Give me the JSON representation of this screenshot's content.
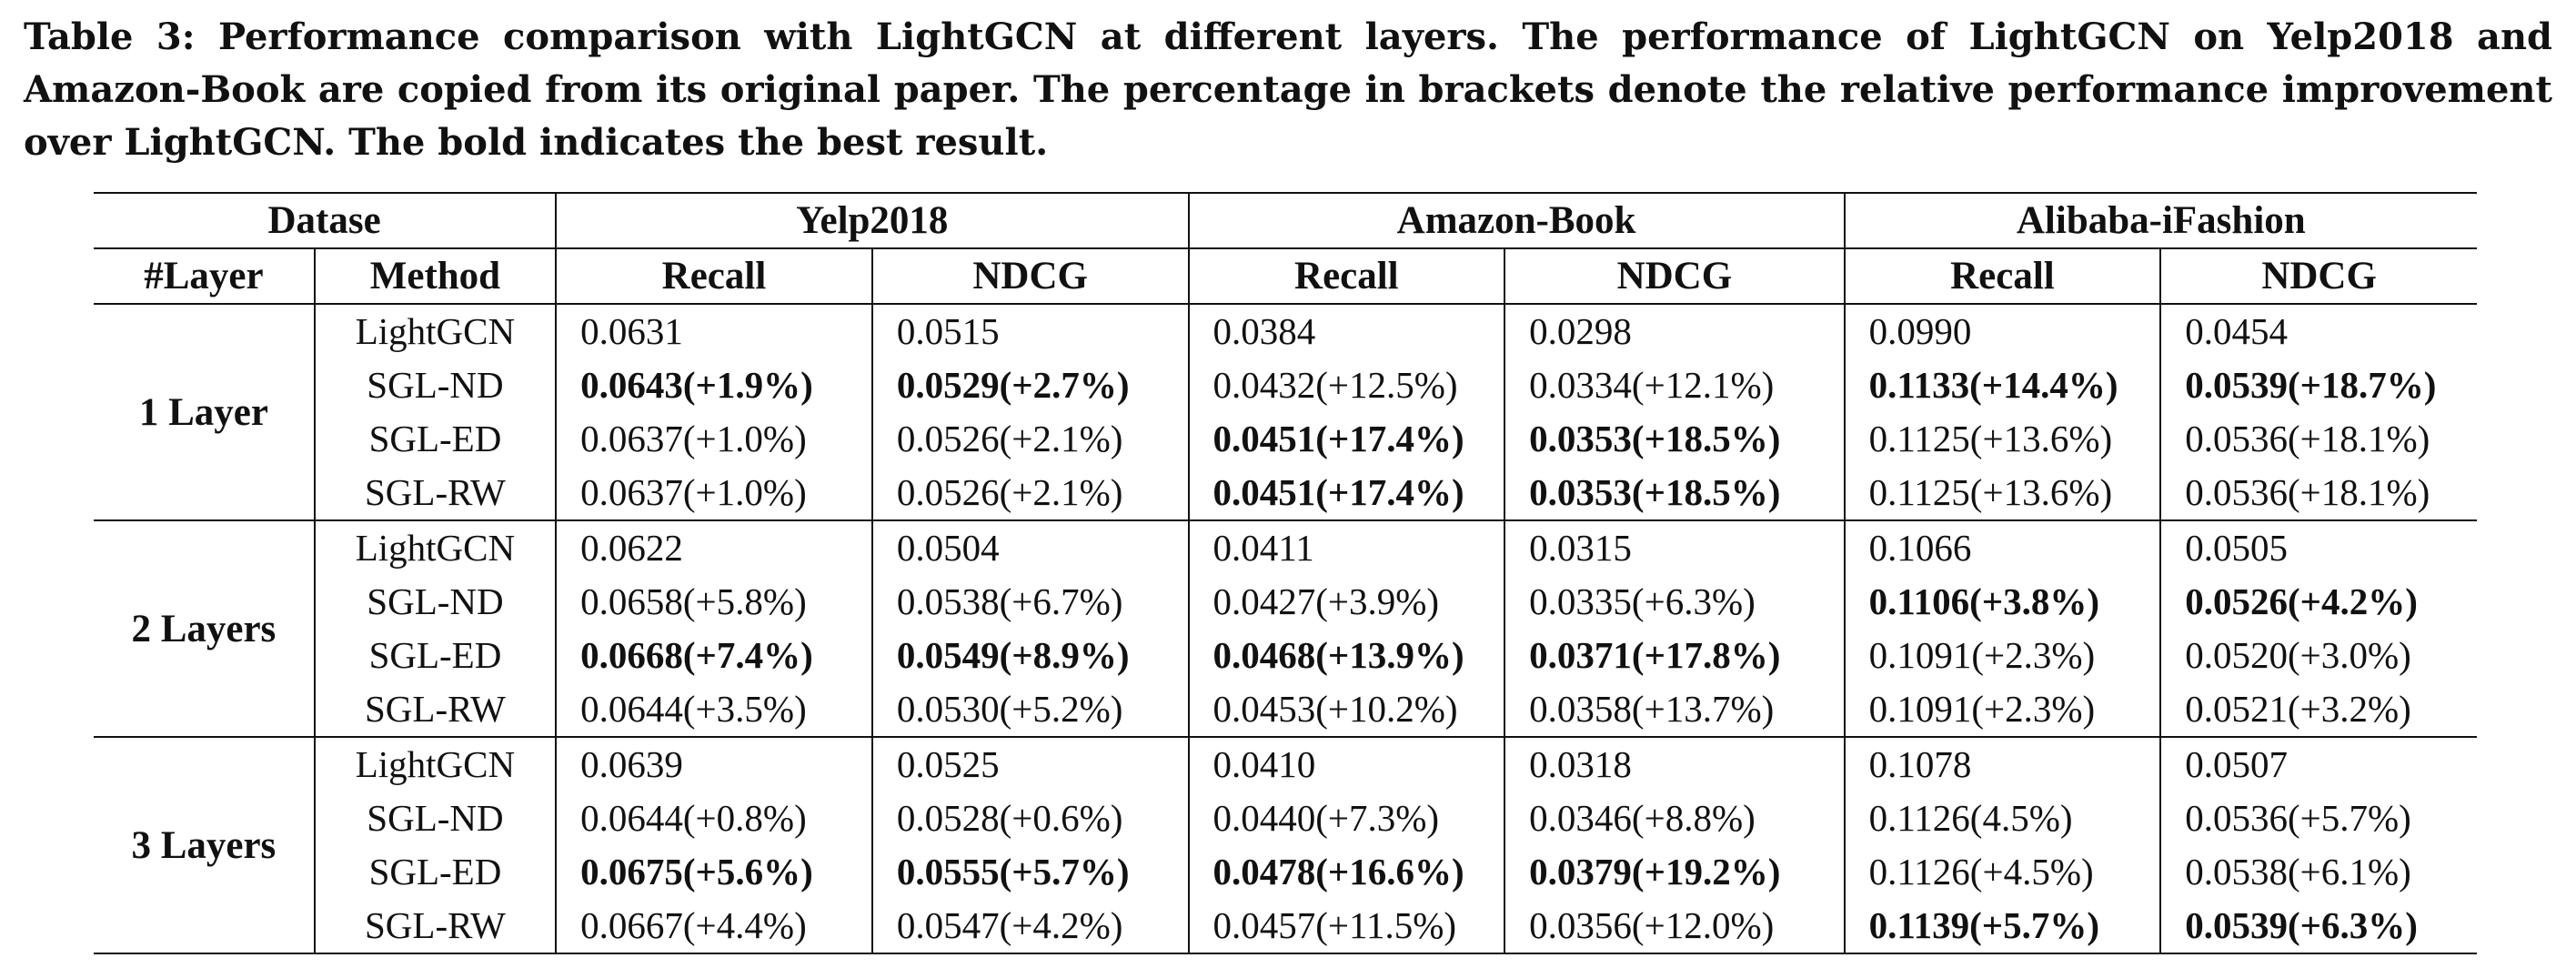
{
  "caption": "Table 3: Performance comparison with LightGCN at different layers. The performance of LightGCN on Yelp2018 and Amazon-Book are copied from its original paper. The percentage in brackets denote the relative performance improvement over LightGCN. The bold indicates the best result.",
  "header": {
    "datase": "Datase",
    "datasets": [
      "Yelp2018",
      "Amazon-Book",
      "Alibaba-iFashion"
    ],
    "layer_col": "#Layer",
    "method_col": "Method",
    "metrics": [
      "Recall",
      "NDCG",
      "Recall",
      "NDCG",
      "Recall",
      "NDCG"
    ]
  },
  "groups": [
    {
      "layer": "1 Layer",
      "rows": [
        {
          "method": "LightGCN",
          "values": [
            "0.0631",
            "0.0515",
            "0.0384",
            "0.0298",
            "0.0990",
            "0.0454"
          ],
          "best": [
            false,
            false,
            false,
            false,
            false,
            false
          ]
        },
        {
          "method": "SGL-ND",
          "values": [
            "0.0643(+1.9%)",
            "0.0529(+2.7%)",
            "0.0432(+12.5%)",
            "0.0334(+12.1%)",
            "0.1133(+14.4%)",
            "0.0539(+18.7%)"
          ],
          "best": [
            true,
            true,
            false,
            false,
            true,
            true
          ]
        },
        {
          "method": "SGL-ED",
          "values": [
            "0.0637(+1.0%)",
            "0.0526(+2.1%)",
            "0.0451(+17.4%)",
            "0.0353(+18.5%)",
            "0.1125(+13.6%)",
            "0.0536(+18.1%)"
          ],
          "best": [
            false,
            false,
            true,
            true,
            false,
            false
          ]
        },
        {
          "method": "SGL-RW",
          "values": [
            "0.0637(+1.0%)",
            "0.0526(+2.1%)",
            "0.0451(+17.4%)",
            "0.0353(+18.5%)",
            "0.1125(+13.6%)",
            "0.0536(+18.1%)"
          ],
          "best": [
            false,
            false,
            true,
            true,
            false,
            false
          ]
        }
      ]
    },
    {
      "layer": "2 Layers",
      "rows": [
        {
          "method": "LightGCN",
          "values": [
            "0.0622",
            "0.0504",
            "0.0411",
            "0.0315",
            "0.1066",
            "0.0505"
          ],
          "best": [
            false,
            false,
            false,
            false,
            false,
            false
          ]
        },
        {
          "method": "SGL-ND",
          "values": [
            "0.0658(+5.8%)",
            "0.0538(+6.7%)",
            "0.0427(+3.9%)",
            "0.0335(+6.3%)",
            "0.1106(+3.8%)",
            "0.0526(+4.2%)"
          ],
          "best": [
            false,
            false,
            false,
            false,
            true,
            true
          ]
        },
        {
          "method": "SGL-ED",
          "values": [
            "0.0668(+7.4%)",
            "0.0549(+8.9%)",
            "0.0468(+13.9%)",
            "0.0371(+17.8%)",
            "0.1091(+2.3%)",
            "0.0520(+3.0%)"
          ],
          "best": [
            true,
            true,
            true,
            true,
            false,
            false
          ]
        },
        {
          "method": "SGL-RW",
          "values": [
            "0.0644(+3.5%)",
            "0.0530(+5.2%)",
            "0.0453(+10.2%)",
            "0.0358(+13.7%)",
            "0.1091(+2.3%)",
            "0.0521(+3.2%)"
          ],
          "best": [
            false,
            false,
            false,
            false,
            false,
            false
          ]
        }
      ]
    },
    {
      "layer": "3 Layers",
      "rows": [
        {
          "method": "LightGCN",
          "values": [
            "0.0639",
            "0.0525",
            "0.0410",
            "0.0318",
            "0.1078",
            "0.0507"
          ],
          "best": [
            false,
            false,
            false,
            false,
            false,
            false
          ]
        },
        {
          "method": "SGL-ND",
          "values": [
            "0.0644(+0.8%)",
            "0.0528(+0.6%)",
            "0.0440(+7.3%)",
            "0.0346(+8.8%)",
            "0.1126(4.5%)",
            "0.0536(+5.7%)"
          ],
          "best": [
            false,
            false,
            false,
            false,
            false,
            false
          ]
        },
        {
          "method": "SGL-ED",
          "values": [
            "0.0675(+5.6%)",
            "0.0555(+5.7%)",
            "0.0478(+16.6%)",
            "0.0379(+19.2%)",
            "0.1126(+4.5%)",
            "0.0538(+6.1%)"
          ],
          "best": [
            true,
            true,
            true,
            true,
            false,
            false
          ]
        },
        {
          "method": "SGL-RW",
          "values": [
            "0.0667(+4.4%)",
            "0.0547(+4.2%)",
            "0.0457(+11.5%)",
            "0.0356(+12.0%)",
            "0.1139(+5.7%)",
            "0.0539(+6.3%)"
          ],
          "best": [
            false,
            false,
            false,
            false,
            true,
            true
          ]
        }
      ]
    }
  ]
}
